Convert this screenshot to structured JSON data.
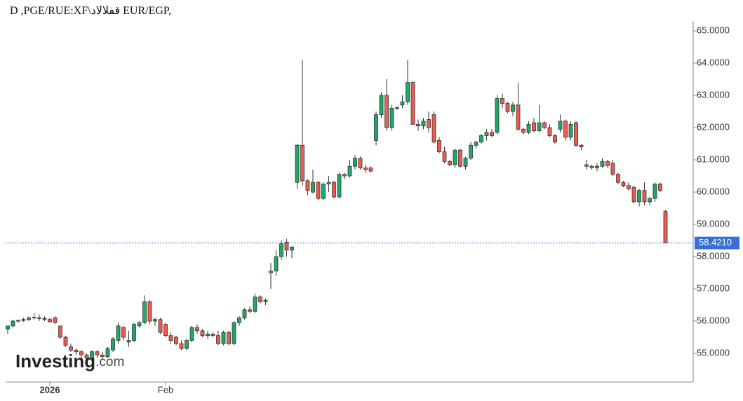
{
  "chart_data": {
    "type": "candlestick",
    "title": "D ,PGE/RUE:XF\\قفلالاد EUR/EGP,",
    "logo": {
      "brand": "Investing",
      "suffix": ".com"
    },
    "up_color": "#1fa968",
    "down_color": "#ef5a50",
    "ylim": [
      54.109,
      65.304
    ],
    "yticks": [
      {
        "value": 55,
        "label": "55.0000"
      },
      {
        "value": 56,
        "label": "56.0000"
      },
      {
        "value": 57,
        "label": "57.0000"
      },
      {
        "value": 58,
        "label": "58.0000"
      },
      {
        "value": 59,
        "label": "59.0000"
      },
      {
        "value": 60,
        "label": "60.0000"
      },
      {
        "value": 61,
        "label": "61.0000"
      },
      {
        "value": 62,
        "label": "62.0000"
      },
      {
        "value": 63,
        "label": "63.0000"
      },
      {
        "value": 64,
        "label": "64.0000"
      },
      {
        "value": 65,
        "label": "65.0000"
      }
    ],
    "last_price": {
      "value": 58.421,
      "label": "58.4210"
    },
    "categories": [
      null,
      null,
      null,
      null,
      null,
      null,
      null,
      null,
      "2026",
      null,
      null,
      null,
      null,
      null,
      null,
      null,
      null,
      null,
      null,
      null,
      null,
      null,
      null,
      null,
      null,
      null,
      null,
      null,
      null,
      null,
      "Feb",
      null,
      null,
      null,
      null,
      null,
      null,
      null,
      null,
      null,
      null,
      null,
      null,
      null,
      null,
      null,
      null,
      null,
      null,
      null,
      null,
      null,
      null,
      null,
      null,
      null,
      null,
      null,
      null,
      null,
      null,
      null,
      null,
      null,
      null,
      null,
      null,
      null,
      null,
      null,
      null,
      null,
      null,
      null,
      null,
      null,
      null,
      null,
      null,
      null,
      null,
      null,
      null,
      null,
      null,
      null,
      null,
      null,
      null,
      null,
      null,
      null,
      null,
      null,
      null,
      null,
      null,
      null,
      null,
      null,
      null,
      null,
      null,
      null,
      null,
      null,
      null,
      null,
      null,
      null,
      null,
      null,
      null,
      null,
      null,
      null,
      null,
      null,
      null,
      null,
      null,
      null,
      null,
      null,
      null,
      null
    ],
    "ohlc": [
      [
        55.75,
        55.85,
        55.6,
        55.85
      ],
      [
        55.85,
        56.05,
        55.8,
        56.0
      ],
      [
        56.0,
        56.05,
        55.95,
        56.02
      ],
      [
        56.02,
        56.1,
        55.98,
        56.05
      ],
      [
        56.05,
        56.15,
        56.0,
        56.1
      ],
      [
        56.1,
        56.25,
        56.05,
        56.12
      ],
      [
        56.1,
        56.2,
        56.0,
        56.08
      ],
      [
        56.08,
        56.15,
        56.0,
        56.05
      ],
      [
        56.05,
        56.1,
        55.95,
        55.98
      ],
      [
        56.1,
        56.15,
        55.9,
        55.95
      ],
      [
        55.85,
        55.85,
        55.45,
        55.5
      ],
      [
        55.5,
        55.55,
        55.2,
        55.25
      ],
      [
        55.2,
        55.3,
        55.05,
        55.1
      ],
      [
        55.1,
        55.15,
        54.95,
        55.05
      ],
      [
        55.05,
        55.1,
        54.85,
        54.95
      ],
      [
        54.95,
        55.0,
        54.8,
        54.85
      ],
      [
        54.85,
        55.1,
        54.8,
        55.05
      ],
      [
        55.05,
        55.1,
        54.85,
        54.95
      ],
      [
        54.95,
        55.05,
        54.8,
        54.9
      ],
      [
        54.9,
        55.2,
        54.85,
        55.15
      ],
      [
        55.1,
        55.5,
        55.05,
        55.45
      ],
      [
        55.4,
        55.95,
        55.3,
        55.85
      ],
      [
        55.8,
        55.85,
        55.4,
        55.5
      ],
      [
        55.35,
        55.7,
        55.2,
        55.4
      ],
      [
        55.4,
        55.95,
        55.35,
        55.9
      ],
      [
        55.85,
        56.0,
        55.8,
        55.95
      ],
      [
        55.95,
        56.8,
        55.9,
        56.6
      ],
      [
        56.6,
        56.65,
        55.9,
        56.0
      ],
      [
        56.0,
        56.1,
        55.85,
        56.05
      ],
      [
        56.05,
        56.1,
        55.6,
        55.65
      ],
      [
        55.9,
        55.95,
        55.5,
        55.55
      ],
      [
        55.55,
        55.65,
        55.3,
        55.4
      ],
      [
        55.5,
        55.55,
        55.25,
        55.3
      ],
      [
        55.3,
        55.4,
        55.1,
        55.15
      ],
      [
        55.15,
        55.45,
        55.1,
        55.4
      ],
      [
        55.4,
        55.85,
        55.35,
        55.8
      ],
      [
        55.8,
        55.9,
        55.6,
        55.7
      ],
      [
        55.7,
        55.75,
        55.5,
        55.55
      ],
      [
        55.55,
        55.7,
        55.45,
        55.6
      ],
      [
        55.6,
        55.65,
        55.5,
        55.55
      ],
      [
        55.55,
        55.7,
        55.25,
        55.3
      ],
      [
        55.3,
        55.7,
        55.25,
        55.65
      ],
      [
        55.65,
        55.7,
        55.25,
        55.3
      ],
      [
        55.3,
        56.0,
        55.25,
        55.95
      ],
      [
        55.95,
        56.15,
        55.85,
        56.1
      ],
      [
        56.1,
        56.4,
        56.05,
        56.35
      ],
      [
        56.35,
        56.45,
        56.25,
        56.3
      ],
      [
        56.3,
        56.85,
        56.25,
        56.75
      ],
      [
        56.75,
        56.8,
        56.55,
        56.6
      ],
      [
        56.6,
        56.7,
        56.5,
        56.65
      ],
      [
        57.5,
        57.8,
        57.0,
        57.55
      ],
      [
        57.55,
        58.2,
        57.4,
        58.0
      ],
      [
        58.0,
        58.5,
        57.9,
        58.4
      ],
      [
        58.45,
        58.55,
        58.0,
        58.2
      ],
      [
        58.2,
        58.3,
        57.95,
        58.3
      ],
      [
        60.3,
        61.5,
        60.1,
        61.45
      ],
      [
        61.45,
        64.1,
        60.2,
        60.35
      ],
      [
        60.35,
        60.4,
        59.9,
        60.05
      ],
      [
        60.0,
        60.7,
        59.95,
        60.3
      ],
      [
        60.3,
        60.35,
        59.75,
        59.8
      ],
      [
        59.8,
        60.3,
        59.75,
        60.25
      ],
      [
        60.25,
        60.5,
        60.0,
        60.3
      ],
      [
        60.3,
        60.35,
        59.8,
        59.85
      ],
      [
        59.85,
        60.6,
        59.8,
        60.55
      ],
      [
        60.55,
        60.6,
        60.4,
        60.5
      ],
      [
        60.5,
        61.0,
        60.45,
        60.8
      ],
      [
        60.8,
        61.15,
        60.7,
        61.05
      ],
      [
        61.05,
        61.1,
        60.7,
        60.75
      ],
      [
        60.75,
        60.85,
        60.6,
        60.7
      ],
      [
        60.75,
        60.8,
        60.6,
        60.65
      ],
      [
        61.6,
        62.5,
        61.45,
        62.4
      ],
      [
        62.4,
        63.1,
        62.3,
        63.0
      ],
      [
        63.0,
        63.5,
        61.9,
        62.0
      ],
      [
        62.0,
        62.7,
        61.9,
        62.6
      ],
      [
        62.6,
        62.65,
        62.55,
        62.62
      ],
      [
        62.7,
        63.0,
        62.6,
        62.8
      ],
      [
        62.8,
        64.1,
        62.7,
        63.4
      ],
      [
        63.4,
        63.45,
        62.1,
        62.1
      ],
      [
        62.1,
        62.25,
        61.9,
        62.05
      ],
      [
        62.05,
        62.3,
        61.95,
        62.2
      ],
      [
        62.25,
        62.5,
        61.85,
        62.0
      ],
      [
        62.4,
        62.5,
        61.5,
        61.55
      ],
      [
        61.6,
        61.7,
        61.2,
        61.25
      ],
      [
        61.25,
        61.4,
        60.9,
        60.95
      ],
      [
        60.95,
        61.0,
        60.8,
        60.85
      ],
      [
        60.85,
        61.35,
        60.75,
        61.3
      ],
      [
        61.3,
        61.35,
        60.75,
        60.8
      ],
      [
        60.8,
        61.1,
        60.7,
        61.05
      ],
      [
        61.05,
        61.55,
        61.0,
        61.45
      ],
      [
        61.45,
        61.6,
        61.35,
        61.55
      ],
      [
        61.55,
        61.8,
        61.5,
        61.75
      ],
      [
        61.75,
        61.95,
        61.6,
        61.85
      ],
      [
        61.85,
        61.95,
        61.7,
        61.75
      ],
      [
        61.85,
        63.0,
        61.8,
        62.9
      ],
      [
        62.9,
        63.05,
        62.6,
        62.75
      ],
      [
        62.75,
        62.8,
        62.45,
        62.5
      ],
      [
        62.5,
        62.8,
        62.35,
        62.7
      ],
      [
        62.7,
        63.4,
        61.9,
        61.95
      ],
      [
        61.95,
        62.0,
        61.8,
        61.85
      ],
      [
        61.85,
        62.2,
        61.8,
        62.1
      ],
      [
        62.15,
        62.3,
        61.85,
        61.9
      ],
      [
        61.9,
        62.7,
        61.85,
        62.15
      ],
      [
        62.15,
        62.2,
        61.95,
        62.0
      ],
      [
        62.0,
        62.1,
        61.7,
        61.75
      ],
      [
        61.75,
        61.8,
        61.5,
        61.55
      ],
      [
        61.95,
        62.4,
        61.85,
        62.2
      ],
      [
        62.2,
        62.25,
        61.6,
        61.7
      ],
      [
        61.7,
        62.2,
        61.6,
        62.1
      ],
      [
        62.15,
        62.2,
        61.4,
        61.45
      ],
      [
        61.45,
        61.5,
        61.3,
        61.4
      ],
      [
        60.85,
        61.0,
        60.7,
        60.8
      ],
      [
        60.8,
        60.85,
        60.7,
        60.75
      ],
      [
        60.75,
        60.9,
        60.65,
        60.8
      ],
      [
        60.8,
        61.05,
        60.75,
        60.95
      ],
      [
        60.95,
        61.0,
        60.75,
        60.82
      ],
      [
        60.9,
        61.0,
        60.5,
        60.55
      ],
      [
        60.55,
        60.6,
        60.25,
        60.3
      ],
      [
        60.3,
        60.35,
        60.15,
        60.2
      ],
      [
        60.2,
        60.3,
        60.05,
        60.1
      ],
      [
        60.15,
        60.2,
        59.65,
        59.7
      ],
      [
        59.7,
        60.1,
        59.55,
        60.05
      ],
      [
        60.05,
        60.3,
        59.6,
        59.7
      ],
      [
        59.7,
        59.85,
        59.6,
        59.8
      ],
      [
        59.8,
        60.3,
        59.7,
        60.25
      ],
      [
        60.25,
        60.3,
        60.0,
        60.05
      ],
      [
        59.4,
        59.45,
        58.42,
        58.421
      ]
    ]
  }
}
